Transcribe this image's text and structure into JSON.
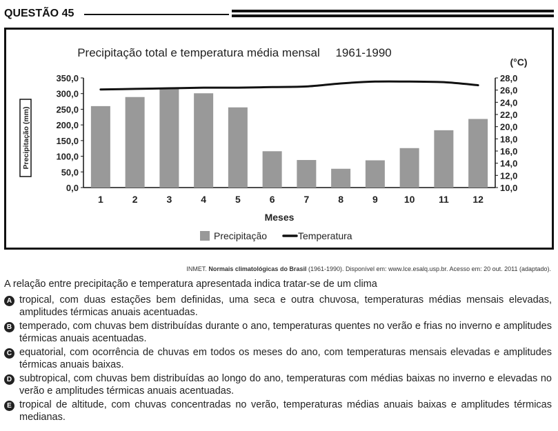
{
  "header": {
    "title": "QUESTÃO 45"
  },
  "chart_data": {
    "type": "bar+line",
    "title": "Precipitação total e temperatura média mensal",
    "period": "1961-1990",
    "xlabel": "Meses",
    "ylabel_left": "Precipitação (mm)",
    "ylabel_right": "(°C)",
    "categories": [
      "1",
      "2",
      "3",
      "4",
      "5",
      "6",
      "7",
      "8",
      "9",
      "10",
      "11",
      "12"
    ],
    "ylim_left": [
      0,
      350
    ],
    "ylim_right": [
      10,
      28
    ],
    "yticks_left": [
      "350,0",
      "300,0",
      "250,0",
      "200,0",
      "150,0",
      "100,0",
      "50,0",
      "0,0"
    ],
    "yticks_right": [
      "28,0",
      "26,0",
      "24,0",
      "22,0",
      "20,0",
      "18,0",
      "16,0",
      "14,0",
      "12,0",
      "10,0"
    ],
    "series": [
      {
        "name": "Precipitação",
        "type": "bar",
        "color": "#999999",
        "values": [
          260,
          289,
          316,
          301,
          256,
          116,
          88,
          60,
          87,
          126,
          183,
          219
        ]
      },
      {
        "name": "Temperatura",
        "type": "line",
        "color": "#111111",
        "values": [
          26.1,
          26.2,
          26.3,
          26.4,
          26.4,
          26.5,
          26.6,
          27.1,
          27.4,
          27.4,
          27.3,
          26.8
        ]
      }
    ],
    "legend": [
      "Precipitação",
      "Temperatura"
    ]
  },
  "source": {
    "prefix": "INMET. ",
    "title": "Normais climatológicas do Brasil",
    "suffix": " (1961-1990). Disponível em: www.lce.esalq.usp.br. Acesso em: 20 out. 2011 (adaptado)."
  },
  "question": {
    "stem": "A relação entre precipitação e temperatura apresentada indica tratar-se de um clima",
    "options": [
      {
        "letter": "A",
        "text": "tropical, com duas estações bem definidas, uma seca e outra chuvosa, temperaturas médias mensais elevadas, amplitudes térmicas anuais acentuadas."
      },
      {
        "letter": "B",
        "text": "temperado, com chuvas bem distribuídas durante o ano, temperaturas quentes no verão e frias no inverno e amplitudes térmicas anuais acentuadas."
      },
      {
        "letter": "C",
        "text": "equatorial, com ocorrência de chuvas em todos os meses do ano, com temperaturas mensais elevadas e amplitudes térmicas anuais baixas."
      },
      {
        "letter": "D",
        "text": "subtropical, com chuvas bem distribuídas ao longo do ano, temperaturas com médias baixas no inverno e elevadas no verão e amplitudes térmicas anuais acentuadas."
      },
      {
        "letter": "E",
        "text": "tropical de altitude, com chuvas concentradas no verão, temperaturas médias anuais baixas e amplitudes térmicas medianas."
      }
    ]
  }
}
